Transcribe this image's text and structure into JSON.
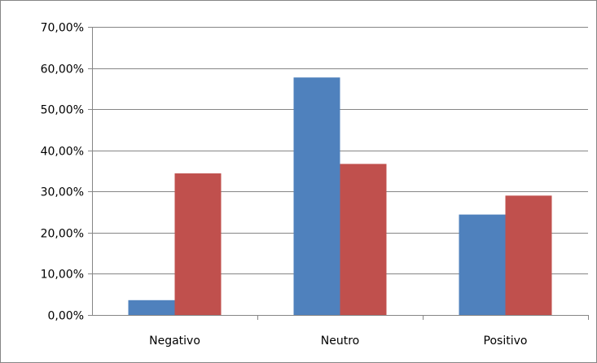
{
  "chart_data": {
    "type": "bar",
    "categories": [
      "Negativo",
      "Neutro",
      "Positivo"
    ],
    "series": [
      {
        "values": [
          3.6,
          57.7,
          24.4
        ],
        "color": "#4f81bd"
      },
      {
        "values": [
          34.4,
          36.7,
          29.0
        ],
        "color": "#c0504d"
      }
    ],
    "y_ticks": [
      "0,00%",
      "10,00%",
      "20,00%",
      "30,00%",
      "40,00%",
      "50,00%",
      "60,00%",
      "70,00%"
    ],
    "ylim": [
      0,
      70
    ],
    "y_tick_step": 10,
    "grid": true,
    "legend": "none",
    "gridline_color": "#868686"
  }
}
